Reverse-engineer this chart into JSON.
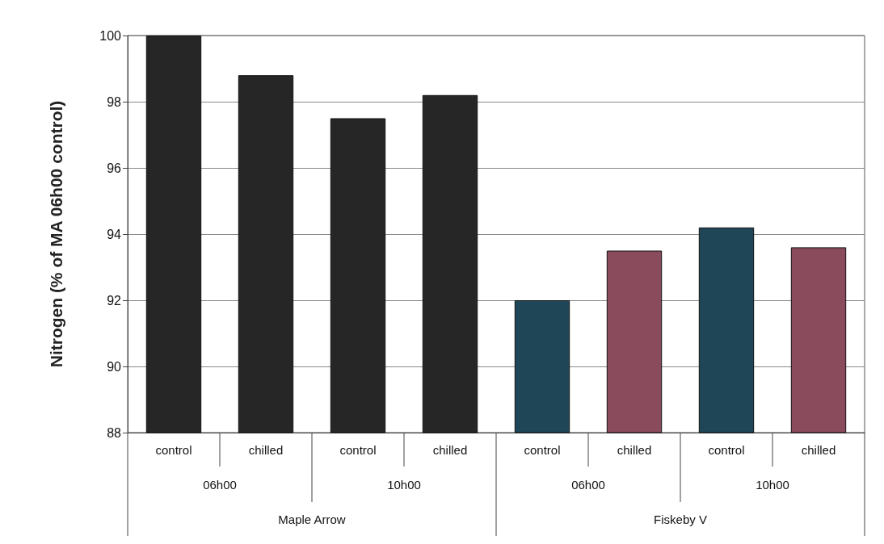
{
  "chart_data": {
    "type": "bar",
    "ylabel": "Nitrogen (% of MA 06h00 control)",
    "categories": [
      "control",
      "chilled",
      "control",
      "chilled",
      "control",
      "chilled",
      "control",
      "chilled"
    ],
    "values": [
      100,
      98.8,
      97.5,
      98.2,
      92.0,
      93.5,
      94.2,
      93.6
    ],
    "colors": [
      "#262626",
      "#262626",
      "#262626",
      "#262626",
      "#1e4656",
      "#8a4b5c",
      "#1e4656",
      "#8a4b5c"
    ],
    "annotations": [
      "06h00",
      "10h00",
      "06h00",
      "10h00",
      "Maple Arrow",
      "Fiskeby V"
    ],
    "ylim": [
      88,
      100
    ],
    "yticks": [
      88,
      90,
      92,
      94,
      96,
      98,
      100
    ],
    "grid": "y"
  }
}
